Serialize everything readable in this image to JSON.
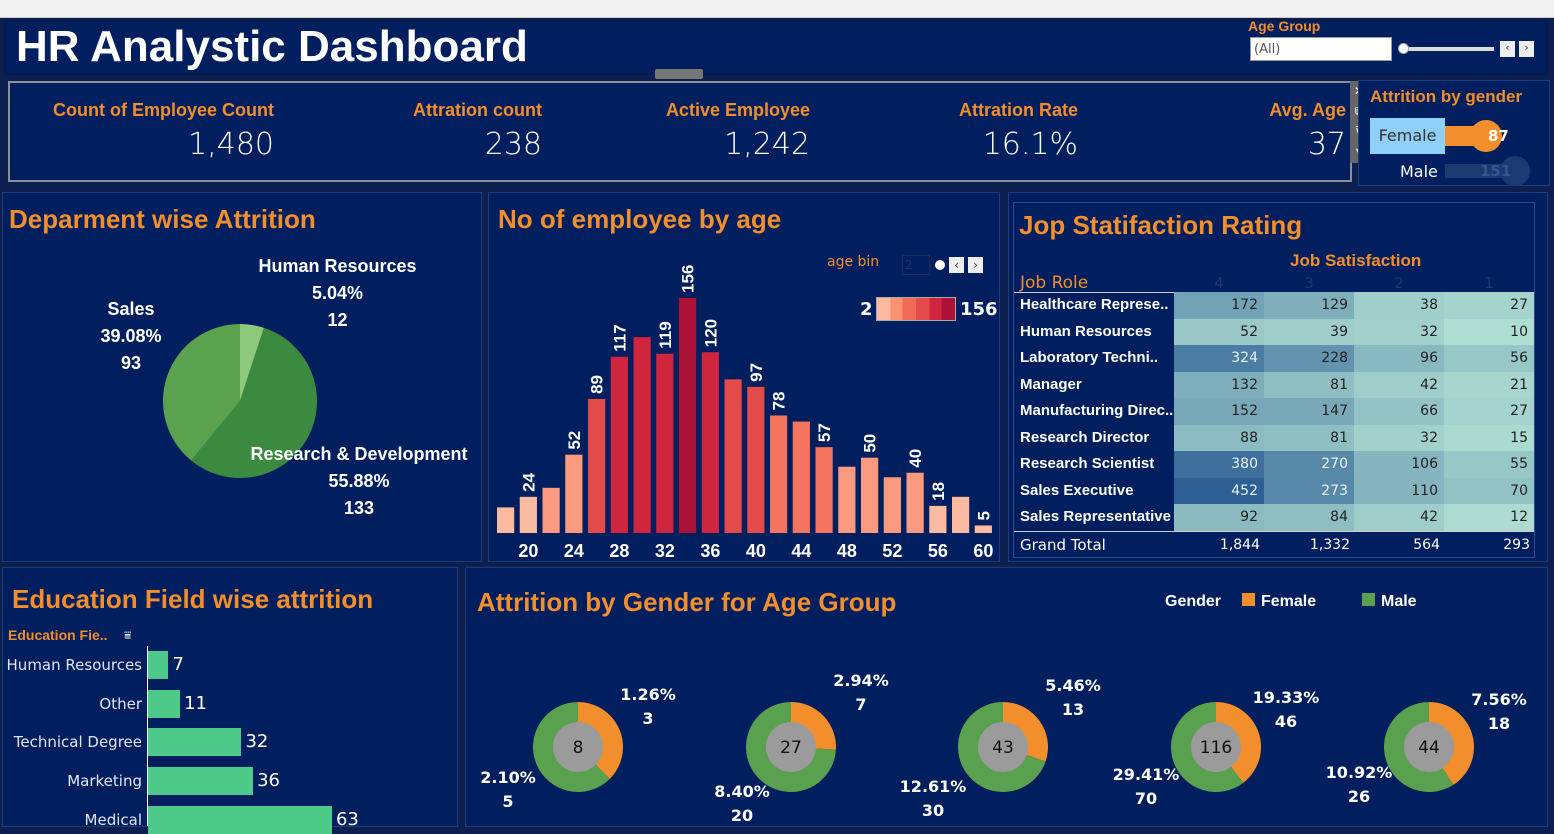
{
  "header": {
    "title": "HR Analystic Dashboard"
  },
  "filter": {
    "label": "Age Group",
    "value": "(All)"
  },
  "kpis": [
    {
      "label": "Count of Employee Count",
      "value": "1,480"
    },
    {
      "label": "Attration count",
      "value": "238"
    },
    {
      "label": "Active Employee",
      "value": "1,242"
    },
    {
      "label": "Attration Rate",
      "value": "16.1%"
    },
    {
      "label": "Avg. Age",
      "value": "37"
    }
  ],
  "gender_attrition": {
    "title": "Attrition by gender",
    "items": [
      {
        "label": "Female",
        "value": "87"
      },
      {
        "label": "Male",
        "value": "151"
      }
    ]
  },
  "colors": {
    "bg": "#011f5e",
    "accent": "#f28e2b",
    "female": "#f28e2b",
    "male": "#59a14f",
    "edu_bar": "#4dc98a"
  },
  "chart_data": [
    {
      "type": "pie",
      "title": "Deparment wise Attrition",
      "slices": [
        {
          "label": "Human Resources",
          "pct": "5.04%",
          "value": 12,
          "color": "#8cc97a"
        },
        {
          "label": "Research & Development",
          "pct": "55.88%",
          "value": 133,
          "color": "#3c8a3f"
        },
        {
          "label": "Sales",
          "pct": "39.08%",
          "value": 93,
          "color": "#5aa24d"
        }
      ]
    },
    {
      "type": "bar",
      "title": "No of employee by age",
      "param_label": "age bin",
      "param_value": "2",
      "legend_min": "2",
      "legend_max": "156",
      "x": [
        18,
        20,
        22,
        24,
        26,
        28,
        30,
        32,
        34,
        36,
        38,
        40,
        42,
        44,
        46,
        48,
        50,
        52,
        54,
        56,
        58,
        60
      ],
      "values": [
        17,
        24,
        30,
        52,
        89,
        117,
        130,
        119,
        156,
        120,
        102,
        97,
        78,
        74,
        57,
        44,
        50,
        37,
        40,
        18,
        24,
        5
      ],
      "labeled": [
        false,
        true,
        false,
        true,
        true,
        true,
        false,
        true,
        true,
        true,
        false,
        true,
        true,
        false,
        true,
        false,
        true,
        false,
        true,
        true,
        false,
        true
      ],
      "xticks": [
        "20",
        "24",
        "28",
        "32",
        "36",
        "40",
        "44",
        "48",
        "52",
        "56",
        "60"
      ],
      "ylim": [
        0,
        156
      ]
    },
    {
      "type": "heatmap",
      "title": "Jop Statifaction Rating",
      "col_header": "Job Satisfaction",
      "row_header": "Job Role",
      "columns": [
        "4",
        "3",
        "2",
        "1"
      ],
      "rows": [
        {
          "role": "Healthcare Represe..",
          "values": [
            172,
            129,
            38,
            27
          ]
        },
        {
          "role": "Human Resources",
          "values": [
            52,
            39,
            32,
            10
          ]
        },
        {
          "role": "Laboratory Techni..",
          "values": [
            324,
            228,
            96,
            56
          ]
        },
        {
          "role": "Manager",
          "values": [
            132,
            81,
            42,
            21
          ]
        },
        {
          "role": "Manufacturing Direc..",
          "values": [
            152,
            147,
            66,
            27
          ]
        },
        {
          "role": "Research Director",
          "values": [
            88,
            81,
            32,
            15
          ]
        },
        {
          "role": "Research Scientist",
          "values": [
            380,
            270,
            106,
            55
          ]
        },
        {
          "role": "Sales Executive",
          "values": [
            452,
            273,
            110,
            70
          ]
        },
        {
          "role": "Sales Representative",
          "values": [
            92,
            84,
            42,
            12
          ]
        }
      ],
      "total_label": "Grand Total",
      "totals": [
        "1,844",
        "1,332",
        "564",
        "293"
      ]
    },
    {
      "type": "bar",
      "orientation": "horizontal",
      "title": "Education Field wise attrition",
      "axis_label": "Education Fie..",
      "categories": [
        "Human Resources",
        "Other",
        "Technical Degree",
        "Marketing",
        "Medical"
      ],
      "values": [
        7,
        11,
        32,
        36,
        63
      ]
    },
    {
      "type": "pie",
      "subtype": "donut",
      "title": "Attrition by Gender for Age Group",
      "legend_title": "Gender",
      "legend": [
        "Female",
        "Male"
      ],
      "groups": [
        {
          "total": "8",
          "female": 3,
          "female_pct": "1.26%",
          "male": 5,
          "male_pct": "2.10%"
        },
        {
          "total": "27",
          "female": 7,
          "female_pct": "2.94%",
          "male": 20,
          "male_pct": "8.40%"
        },
        {
          "total": "43",
          "female": 13,
          "female_pct": "5.46%",
          "male": 30,
          "male_pct": "12.61%"
        },
        {
          "total": "116",
          "female": 46,
          "female_pct": "19.33%",
          "male": 70,
          "male_pct": "29.41%"
        },
        {
          "total": "44",
          "female": 18,
          "female_pct": "7.56%",
          "male": 26,
          "male_pct": "10.92%"
        }
      ]
    }
  ]
}
